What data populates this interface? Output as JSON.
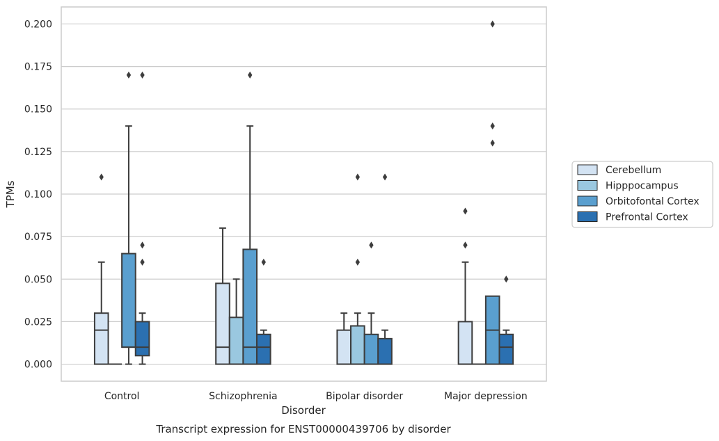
{
  "chart_data": {
    "type": "box",
    "caption": "Transcript expression for ENST00000439706 by disorder",
    "xlabel": "Disorder",
    "ylabel": "TPMs",
    "ylim": [
      -0.01,
      0.21
    ],
    "yticks": [
      0.0,
      0.025,
      0.05,
      0.075,
      0.1,
      0.125,
      0.15,
      0.175,
      0.2
    ],
    "ytick_labels": [
      "0.000",
      "0.025",
      "0.050",
      "0.075",
      "0.100",
      "0.125",
      "0.150",
      "0.175",
      "0.200"
    ],
    "grid": "horizontal",
    "legend_position": "right",
    "categories": [
      "Control",
      "Schizophrenia",
      "Bipolar disorder",
      "Major depression"
    ],
    "series": [
      {
        "name": "Cerebellum",
        "color": "#d3e3f3",
        "boxes": [
          {
            "whisker_low": 0.0,
            "q1": 0.0,
            "median": 0.02,
            "q3": 0.03,
            "whisker_high": 0.06,
            "outliers": [
              0.11
            ]
          },
          {
            "whisker_low": 0.0,
            "q1": 0.0,
            "median": 0.01,
            "q3": 0.0475,
            "whisker_high": 0.08,
            "outliers": []
          },
          {
            "whisker_low": 0.0,
            "q1": 0.0,
            "median": 0.0,
            "q3": 0.02,
            "whisker_high": 0.03,
            "outliers": []
          },
          {
            "whisker_low": 0.0,
            "q1": 0.0,
            "median": 0.0,
            "q3": 0.025,
            "whisker_high": 0.06,
            "outliers": [
              0.07,
              0.09
            ]
          }
        ]
      },
      {
        "name": "Hipppocampus",
        "color": "#9ac8e0",
        "boxes": [
          {
            "whisker_low": 0.0,
            "q1": 0.0,
            "median": 0.0,
            "q3": 0.0,
            "whisker_high": 0.0,
            "outliers": []
          },
          {
            "whisker_low": 0.0,
            "q1": 0.0,
            "median": 0.0,
            "q3": 0.0275,
            "whisker_high": 0.05,
            "outliers": []
          },
          {
            "whisker_low": 0.0,
            "q1": 0.0,
            "median": 0.0,
            "q3": 0.0225,
            "whisker_high": 0.03,
            "outliers": [
              0.06,
              0.11
            ]
          },
          {
            "whisker_low": 0.0,
            "q1": 0.0,
            "median": 0.0,
            "q3": 0.0,
            "whisker_high": 0.0,
            "outliers": []
          }
        ]
      },
      {
        "name": "Orbitofontal Cortex",
        "color": "#5a9fcf",
        "boxes": [
          {
            "whisker_low": 0.0,
            "q1": 0.01,
            "median": 0.01,
            "q3": 0.065,
            "whisker_high": 0.14,
            "outliers": [
              0.17
            ]
          },
          {
            "whisker_low": 0.0,
            "q1": 0.0,
            "median": 0.01,
            "q3": 0.0675,
            "whisker_high": 0.14,
            "outliers": [
              0.17
            ]
          },
          {
            "whisker_low": 0.0,
            "q1": 0.0,
            "median": 0.0,
            "q3": 0.0175,
            "whisker_high": 0.03,
            "outliers": [
              0.07
            ]
          },
          {
            "whisker_low": 0.0,
            "q1": 0.0,
            "median": 0.02,
            "q3": 0.04,
            "whisker_high": 0.04,
            "outliers": [
              0.13,
              0.14,
              0.2
            ]
          }
        ]
      },
      {
        "name": "Prefrontal Cortex",
        "color": "#2b70b1",
        "boxes": [
          {
            "whisker_low": 0.0,
            "q1": 0.005,
            "median": 0.01,
            "q3": 0.025,
            "whisker_high": 0.03,
            "outliers": [
              0.06,
              0.07,
              0.17
            ]
          },
          {
            "whisker_low": 0.0,
            "q1": 0.0,
            "median": 0.01,
            "q3": 0.0175,
            "whisker_high": 0.02,
            "outliers": [
              0.06
            ]
          },
          {
            "whisker_low": 0.0,
            "q1": 0.0,
            "median": 0.0,
            "q3": 0.015,
            "whisker_high": 0.02,
            "outliers": [
              0.11
            ]
          },
          {
            "whisker_low": 0.0,
            "q1": 0.0,
            "median": 0.01,
            "q3": 0.0175,
            "whisker_high": 0.02,
            "outliers": [
              0.05
            ]
          }
        ]
      }
    ]
  }
}
